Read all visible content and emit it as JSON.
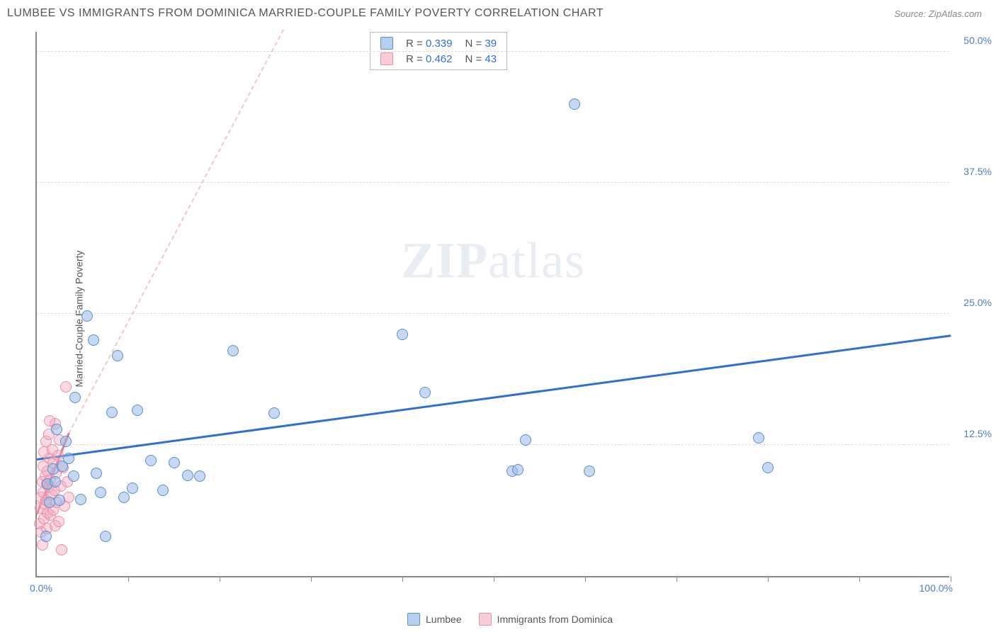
{
  "header": {
    "title": "LUMBEE VS IMMIGRANTS FROM DOMINICA MARRIED-COUPLE FAMILY POVERTY CORRELATION CHART",
    "source": "Source: ZipAtlas.com"
  },
  "watermark": {
    "zip": "ZIP",
    "atlas": "atlas"
  },
  "chart": {
    "type": "scatter",
    "y_axis_title": "Married-Couple Family Poverty",
    "xlim": [
      0,
      100
    ],
    "ylim": [
      0,
      52
    ],
    "x_label_min": "0.0%",
    "x_label_max": "100.0%",
    "y_gridlines": [
      12.5,
      25.0,
      37.5,
      50.0
    ],
    "y_labels": [
      "12.5%",
      "25.0%",
      "37.5%",
      "50.0%"
    ],
    "x_ticks": [
      10,
      20,
      30,
      40,
      50,
      60,
      70,
      80,
      90,
      100
    ],
    "background_color": "#ffffff",
    "grid_color": "#dddddd",
    "axis_color": "#888888",
    "marker_size": 16,
    "series": [
      {
        "name": "Lumbee",
        "color_fill": "rgba(150,187,231,0.55)",
        "color_stroke": "#5a8fd0",
        "r": "0.339",
        "n": "39",
        "trend": {
          "x1": 0,
          "y1": 11.0,
          "x2": 100,
          "y2": 22.8,
          "color": "#2d6fd4",
          "dashed": false
        },
        "points": [
          {
            "x": 1.0,
            "y": 3.8
          },
          {
            "x": 1.2,
            "y": 8.8
          },
          {
            "x": 1.4,
            "y": 7.0
          },
          {
            "x": 1.8,
            "y": 10.2
          },
          {
            "x": 2.0,
            "y": 9.0
          },
          {
            "x": 2.2,
            "y": 14.0
          },
          {
            "x": 2.5,
            "y": 7.2
          },
          {
            "x": 2.8,
            "y": 10.5
          },
          {
            "x": 3.2,
            "y": 12.8
          },
          {
            "x": 3.5,
            "y": 11.2
          },
          {
            "x": 4.0,
            "y": 9.5
          },
          {
            "x": 4.2,
            "y": 17.0
          },
          {
            "x": 4.8,
            "y": 7.3
          },
          {
            "x": 5.5,
            "y": 24.8
          },
          {
            "x": 6.2,
            "y": 22.5
          },
          {
            "x": 6.5,
            "y": 9.8
          },
          {
            "x": 7.0,
            "y": 8.0
          },
          {
            "x": 7.5,
            "y": 3.8
          },
          {
            "x": 8.2,
            "y": 15.6
          },
          {
            "x": 8.8,
            "y": 21.0
          },
          {
            "x": 9.5,
            "y": 7.5
          },
          {
            "x": 10.5,
            "y": 8.4
          },
          {
            "x": 11.0,
            "y": 15.8
          },
          {
            "x": 12.5,
            "y": 11.0
          },
          {
            "x": 13.8,
            "y": 8.2
          },
          {
            "x": 15.0,
            "y": 10.8
          },
          {
            "x": 16.5,
            "y": 9.6
          },
          {
            "x": 17.8,
            "y": 9.5
          },
          {
            "x": 21.5,
            "y": 21.5
          },
          {
            "x": 26.0,
            "y": 15.5
          },
          {
            "x": 40.0,
            "y": 23.0
          },
          {
            "x": 42.5,
            "y": 17.5
          },
          {
            "x": 52.0,
            "y": 10.0
          },
          {
            "x": 52.6,
            "y": 10.1
          },
          {
            "x": 53.5,
            "y": 13.0
          },
          {
            "x": 58.8,
            "y": 45.0
          },
          {
            "x": 60.5,
            "y": 10.0
          },
          {
            "x": 79.0,
            "y": 13.2
          },
          {
            "x": 80.0,
            "y": 10.3
          }
        ]
      },
      {
        "name": "Immigrants from Dominica",
        "color_fill": "rgba(245,170,190,0.45)",
        "color_stroke": "#e890a8",
        "r": "0.462",
        "n": "43",
        "trend_solid": {
          "x1": 0,
          "y1": 5.8,
          "x2": 3.5,
          "y2": 13.5,
          "color": "#e8708f"
        },
        "trend_dashed": {
          "x1": 3.5,
          "y1": 13.5,
          "x2": 27,
          "y2": 52,
          "color": "rgba(230,140,160,0.5)"
        },
        "points": [
          {
            "x": 0.3,
            "y": 5.0
          },
          {
            "x": 0.4,
            "y": 6.5
          },
          {
            "x": 0.5,
            "y": 4.2
          },
          {
            "x": 0.5,
            "y": 7.5
          },
          {
            "x": 0.6,
            "y": 9.0
          },
          {
            "x": 0.6,
            "y": 3.0
          },
          {
            "x": 0.7,
            "y": 8.0
          },
          {
            "x": 0.7,
            "y": 10.5
          },
          {
            "x": 0.8,
            "y": 5.5
          },
          {
            "x": 0.8,
            "y": 11.8
          },
          {
            "x": 0.9,
            "y": 6.8
          },
          {
            "x": 0.9,
            "y": 9.5
          },
          {
            "x": 1.0,
            "y": 12.8
          },
          {
            "x": 1.0,
            "y": 7.2
          },
          {
            "x": 1.1,
            "y": 4.5
          },
          {
            "x": 1.1,
            "y": 8.8
          },
          {
            "x": 1.2,
            "y": 10.0
          },
          {
            "x": 1.2,
            "y": 6.0
          },
          {
            "x": 1.3,
            "y": 13.5
          },
          {
            "x": 1.3,
            "y": 8.5
          },
          {
            "x": 1.4,
            "y": 11.2
          },
          {
            "x": 1.5,
            "y": 5.8
          },
          {
            "x": 1.5,
            "y": 9.2
          },
          {
            "x": 1.6,
            "y": 7.8
          },
          {
            "x": 1.7,
            "y": 12.0
          },
          {
            "x": 1.8,
            "y": 6.3
          },
          {
            "x": 1.8,
            "y": 10.8
          },
          {
            "x": 1.9,
            "y": 8.2
          },
          {
            "x": 2.0,
            "y": 14.5
          },
          {
            "x": 2.0,
            "y": 4.8
          },
          {
            "x": 2.1,
            "y": 9.8
          },
          {
            "x": 2.2,
            "y": 7.0
          },
          {
            "x": 2.3,
            "y": 11.5
          },
          {
            "x": 2.4,
            "y": 5.2
          },
          {
            "x": 2.5,
            "y": 13.0
          },
          {
            "x": 2.6,
            "y": 8.6
          },
          {
            "x": 2.7,
            "y": 2.5
          },
          {
            "x": 2.9,
            "y": 10.3
          },
          {
            "x": 3.0,
            "y": 6.7
          },
          {
            "x": 3.2,
            "y": 18.0
          },
          {
            "x": 3.3,
            "y": 9.0
          },
          {
            "x": 3.5,
            "y": 7.5
          },
          {
            "x": 1.4,
            "y": 14.8
          }
        ]
      }
    ],
    "stats_labels": {
      "r": "R =",
      "n": "N ="
    },
    "legend": [
      {
        "label": "Lumbee",
        "swatch": "sw-blue"
      },
      {
        "label": "Immigrants from Dominica",
        "swatch": "sw-pink"
      }
    ]
  }
}
